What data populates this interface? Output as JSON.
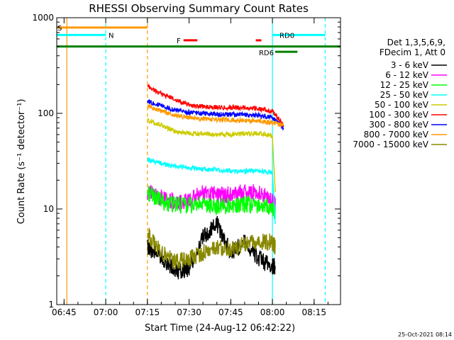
{
  "chart_data": {
    "type": "line",
    "title": "RHESSI Observing Summary Count Rates",
    "xlabel": "Start Time (24-Aug-12 06:42:22)",
    "ylabel": "Count Rate (s⁻¹ detector⁻¹)",
    "yscale": "log",
    "xlim": [
      "06:42:22",
      "08:24:30"
    ],
    "ylim": [
      1,
      1000
    ],
    "x_ticks": [
      "06:45",
      "07:00",
      "07:15",
      "07:30",
      "07:45",
      "08:00",
      "08:15"
    ],
    "y_ticks": [
      "1",
      "10",
      "100",
      "1000"
    ],
    "legend_header": [
      "Det 1,3,5,6,9,",
      "FDecim 1, Att 0"
    ],
    "legend_position": "right",
    "footer_date": "25-Oct-2021 08:14",
    "series": [
      {
        "name": "3 - 6 keV",
        "color": "#000000",
        "x": [
          "07:15",
          "07:20",
          "07:25",
          "07:30",
          "07:35",
          "07:40",
          "07:45",
          "07:50",
          "07:55",
          "08:00",
          "08:01"
        ],
        "y": [
          4.0,
          3.2,
          2.2,
          2.4,
          5.0,
          7.0,
          3.5,
          4.5,
          3.0,
          2.5,
          2.5
        ]
      },
      {
        "name": "6 - 12 keV",
        "color": "#ff00ff",
        "x": [
          "07:15",
          "07:20",
          "07:25",
          "07:30",
          "07:35",
          "07:40",
          "07:45",
          "07:50",
          "07:55",
          "08:00",
          "08:01"
        ],
        "y": [
          15,
          13,
          12,
          12,
          15,
          14,
          14,
          15,
          15,
          12,
          11
        ]
      },
      {
        "name": "12 - 25 keV",
        "color": "#00ff00",
        "x": [
          "07:15",
          "07:20",
          "07:25",
          "07:30",
          "07:35",
          "07:40",
          "07:45",
          "07:50",
          "07:55",
          "08:00",
          "08:01"
        ],
        "y": [
          15,
          12,
          11,
          11,
          11,
          10.5,
          11,
          11,
          11,
          10,
          9.5
        ]
      },
      {
        "name": "25 - 50 keV",
        "color": "#00ffff",
        "x": [
          "07:15",
          "07:20",
          "07:25",
          "07:30",
          "07:35",
          "07:40",
          "07:45",
          "07:50",
          "07:55",
          "08:00",
          "08:01"
        ],
        "y": [
          33,
          30,
          28,
          27,
          26,
          25.5,
          25,
          25,
          25,
          24,
          7
        ]
      },
      {
        "name": "50 - 100 keV",
        "color": "#cccc00",
        "x": [
          "07:15",
          "07:20",
          "07:25",
          "07:30",
          "07:35",
          "07:40",
          "07:45",
          "07:50",
          "07:55",
          "08:00",
          "08:01"
        ],
        "y": [
          85,
          75,
          65,
          62,
          61,
          60,
          60,
          61,
          62,
          58,
          15
        ]
      },
      {
        "name": "100 - 300 keV",
        "color": "#ff0000",
        "x": [
          "07:15",
          "07:20",
          "07:25",
          "07:30",
          "07:35",
          "07:40",
          "07:45",
          "07:50",
          "07:55",
          "08:00",
          "08:04"
        ],
        "y": [
          190,
          160,
          140,
          122,
          118,
          115,
          115,
          115,
          112,
          105,
          75
        ]
      },
      {
        "name": "300 - 800 keV",
        "color": "#0000ff",
        "x": [
          "07:15",
          "07:20",
          "07:25",
          "07:30",
          "07:35",
          "07:40",
          "07:45",
          "07:50",
          "07:55",
          "08:00",
          "08:04"
        ],
        "y": [
          135,
          120,
          108,
          102,
          100,
          98,
          97,
          96,
          95,
          90,
          70
        ]
      },
      {
        "name": "800 - 7000 keV",
        "color": "#ff9900",
        "x": [
          "07:15",
          "07:20",
          "07:25",
          "07:30",
          "07:35",
          "07:40",
          "07:45",
          "07:50",
          "07:55",
          "08:00",
          "08:04"
        ],
        "y": [
          120,
          105,
          95,
          90,
          88,
          86,
          85,
          84,
          83,
          80,
          75
        ]
      },
      {
        "name": "7000 - 15000 keV",
        "color": "#888800",
        "x": [
          "07:15",
          "07:20",
          "07:25",
          "07:30",
          "07:35",
          "07:40",
          "07:45",
          "07:50",
          "07:55",
          "08:00",
          "08:01"
        ],
        "y": [
          5.5,
          3.5,
          2.8,
          3.0,
          3.5,
          4.0,
          3.8,
          4.2,
          4.5,
          4.5,
          4.0
        ]
      }
    ],
    "vertical_markers": [
      {
        "time": "06:46",
        "color": "#ff9900",
        "style": "solid"
      },
      {
        "time": "07:00",
        "color": "#00ffff",
        "style": "dashed"
      },
      {
        "time": "07:15",
        "color": "#ff9900",
        "style": "dashed"
      },
      {
        "time": "08:00",
        "color": "#00ffff",
        "style": "solid"
      },
      {
        "time": "08:19",
        "color": "#00ffff",
        "style": "dashed"
      }
    ],
    "flag_bars": [
      {
        "label": "S",
        "color": "#ff9900",
        "x_start": "06:42:22",
        "x_end": "07:15",
        "level": 790
      },
      {
        "label": "N",
        "color": "#00ffff",
        "x_start": "06:42:22",
        "x_end": "07:00",
        "level": 660
      },
      {
        "label": "",
        "color": "#008000",
        "x_start": "06:42:22",
        "x_end": "08:24:30",
        "level": 500
      },
      {
        "label": "F",
        "color": "#ff0000",
        "x_start": "07:28",
        "x_end": "07:33",
        "level": 580
      },
      {
        "label": "",
        "color": "#ff0000",
        "x_start": "07:54",
        "x_end": "07:56",
        "level": 580
      },
      {
        "label": "RD0",
        "color": "#00ffff",
        "x_start": "08:00",
        "x_end": "08:19",
        "level": 660
      },
      {
        "label": "RD6",
        "color": "#008000",
        "x_start": "08:01",
        "x_end": "08:09",
        "level": 440
      }
    ]
  }
}
